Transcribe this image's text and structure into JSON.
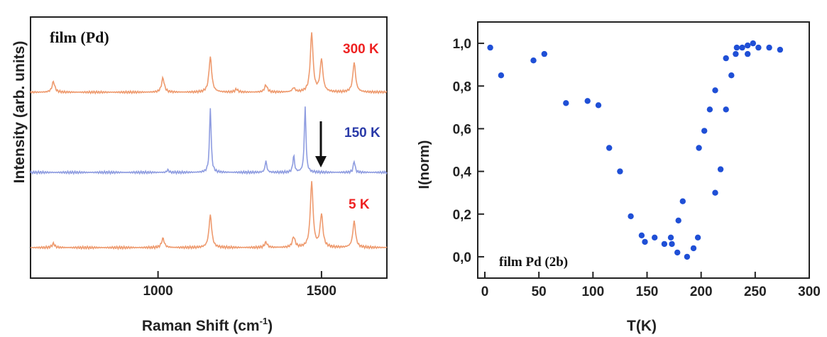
{
  "chart_data": [
    {
      "type": "line",
      "title": "",
      "panel_label": "film (Pd)",
      "xlabel_main": "Raman Shift (cm",
      "xlabel_sup": "-1",
      "xlabel_end": ")",
      "ylabel": "Intensity (arb. units)",
      "xlim": [
        1570,
        1700
      ],
      "xticks": [
        1000,
        1500
      ],
      "x_ticks_labels": [
        "1000",
        "1500"
      ],
      "peaks": [
        680,
        1015,
        1160,
        1330,
        1415,
        1470,
        1500,
        1600
      ],
      "series": [
        {
          "name": "300 K",
          "color": "#ee9a6e",
          "label_color": "#ee2222",
          "peaks": [
            [
              680,
              0.18
            ],
            [
              1015,
              0.24
            ],
            [
              1160,
              0.6
            ],
            [
              1240,
              0.05
            ],
            [
              1330,
              0.12
            ],
            [
              1415,
              0.07
            ],
            [
              1470,
              1.0
            ],
            [
              1500,
              0.55
            ],
            [
              1600,
              0.5
            ]
          ]
        },
        {
          "name": "150 K",
          "color": "#8e9ce0",
          "label_color": "#2a3aa8",
          "peaks": [
            [
              1030,
              0.04
            ],
            [
              1160,
              1.0
            ],
            [
              1330,
              0.18
            ],
            [
              1415,
              0.26
            ],
            [
              1450,
              1.0
            ],
            [
              1600,
              0.18
            ]
          ]
        },
        {
          "name": "5 K",
          "color": "#ee9a6e",
          "label_color": "#ee2222",
          "peaks": [
            [
              680,
              0.06
            ],
            [
              1015,
              0.14
            ],
            [
              1160,
              0.5
            ],
            [
              1330,
              0.08
            ],
            [
              1415,
              0.16
            ],
            [
              1470,
              1.0
            ],
            [
              1500,
              0.5
            ],
            [
              1600,
              0.4
            ]
          ]
        }
      ],
      "annotation": "downward arrow near 1500 cm-1 on the 150 K spectrum"
    },
    {
      "type": "scatter",
      "title": "",
      "annotation_label": "film Pd (2b)",
      "xlabel": "T(K)",
      "ylabel": "I(norm)",
      "xlim": [
        0,
        300
      ],
      "ylim": [
        -0.1,
        1.1
      ],
      "xticks": [
        0,
        50,
        100,
        150,
        200,
        250,
        300
      ],
      "yticks": [
        0.0,
        0.2,
        0.4,
        0.6,
        0.8,
        1.0
      ],
      "x_tick_labels": [
        "0",
        "50",
        "100",
        "150",
        "200",
        "250",
        "300"
      ],
      "y_tick_labels": [
        "0,0",
        "0,2",
        "0,4",
        "0,6",
        "0,8",
        "1,0"
      ],
      "color": "#1f4fd6",
      "points": [
        [
          5,
          0.98
        ],
        [
          15,
          0.85
        ],
        [
          45,
          0.92
        ],
        [
          55,
          0.95
        ],
        [
          75,
          0.72
        ],
        [
          95,
          0.73
        ],
        [
          105,
          0.71
        ],
        [
          115,
          0.51
        ],
        [
          125,
          0.4
        ],
        [
          135,
          0.19
        ],
        [
          145,
          0.1
        ],
        [
          148,
          0.07
        ],
        [
          157,
          0.09
        ],
        [
          166,
          0.06
        ],
        [
          172,
          0.09
        ],
        [
          173,
          0.06
        ],
        [
          178,
          0.02
        ],
        [
          179,
          0.17
        ],
        [
          183,
          0.26
        ],
        [
          187,
          0.0
        ],
        [
          193,
          0.04
        ],
        [
          197,
          0.09
        ],
        [
          198,
          0.51
        ],
        [
          203,
          0.59
        ],
        [
          208,
          0.69
        ],
        [
          213,
          0.78
        ],
        [
          213,
          0.3
        ],
        [
          218,
          0.41
        ],
        [
          223,
          0.69
        ],
        [
          223,
          0.93
        ],
        [
          228,
          0.85
        ],
        [
          232,
          0.95
        ],
        [
          233,
          0.98
        ],
        [
          238,
          0.98
        ],
        [
          243,
          0.95
        ],
        [
          243,
          0.99
        ],
        [
          248,
          1.0
        ],
        [
          253,
          0.98
        ],
        [
          263,
          0.98
        ],
        [
          273,
          0.97
        ]
      ]
    }
  ]
}
